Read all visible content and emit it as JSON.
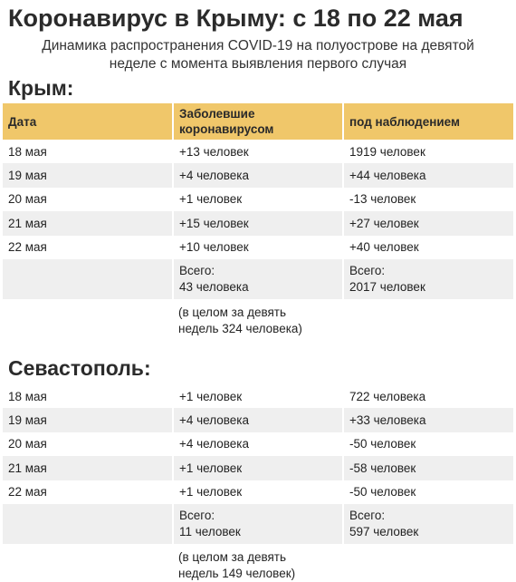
{
  "title": "Коронавирус в Крыму: с 18 по 22 мая",
  "subtitle_line1": "Динамика распространения COVID-19 на полуострове на девятой",
  "subtitle_line2": "неделе с момента выявления первого случая",
  "header_color": "#f0c76a",
  "krym": {
    "title": "Крым:",
    "headers": {
      "date": "Дата",
      "infected_line1": "Заболевшие",
      "infected_line2": "коронавирусом",
      "observed": "под наблюдением"
    },
    "rows": [
      {
        "date": "18 мая",
        "infected": "+13 человек",
        "observed": "1919 человек"
      },
      {
        "date": "19 мая",
        "infected": "+4 человека",
        "observed": "+44 человека"
      },
      {
        "date": "20 мая",
        "infected": "+1 человек",
        "observed": "-13 человек"
      },
      {
        "date": "21 мая",
        "infected": "+15 человек",
        "observed": "+27 человек"
      },
      {
        "date": "22 мая",
        "infected": "+10 человек",
        "observed": "+40 человек"
      }
    ],
    "total_infected_label": "Всего:",
    "total_infected_value": "43 человека",
    "total_observed_label": "Всего:",
    "total_observed_value": "2017 человек",
    "note_line1": "(в целом за девять",
    "note_line2": "недель 324 человека)"
  },
  "sevastopol": {
    "title": "Севастополь:",
    "rows": [
      {
        "date": "18 мая",
        "infected": "+1 человек",
        "observed": "722 человека"
      },
      {
        "date": "19 мая",
        "infected": "+4 человека",
        "observed": "+33 человека"
      },
      {
        "date": "20 мая",
        "infected": "+4 человека",
        "observed": "-50 человек"
      },
      {
        "date": "21 мая",
        "infected": "+1 человек",
        "observed": "-58 человек"
      },
      {
        "date": "22 мая",
        "infected": "+1 человек",
        "observed": "-50 человек"
      }
    ],
    "total_infected_label": "Всего:",
    "total_infected_value": "11 человек",
    "total_observed_label": "Всего:",
    "total_observed_value": "597 человек",
    "note_line1": "(в целом за девять",
    "note_line2": "недель 149 человек)"
  }
}
